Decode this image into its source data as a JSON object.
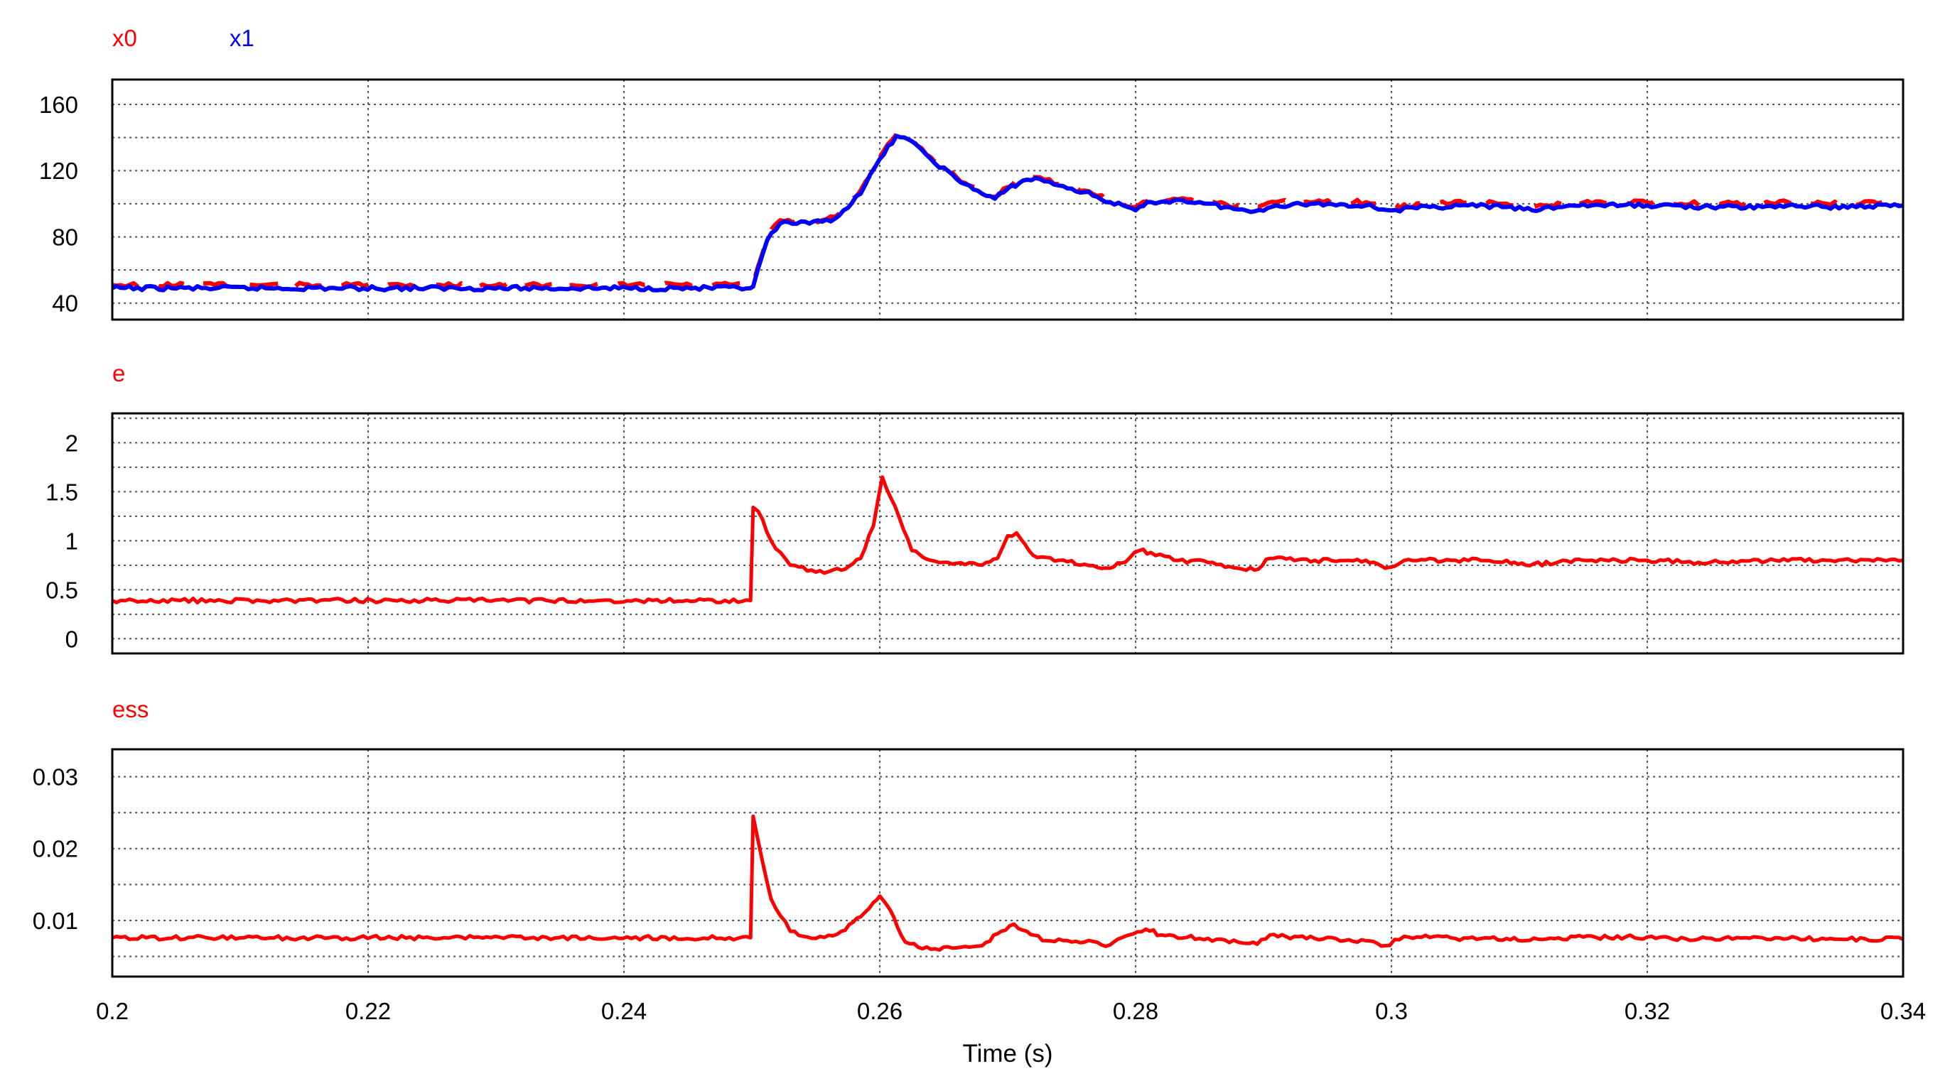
{
  "chart_data": [
    {
      "type": "line",
      "legend": [
        "x0",
        "x1"
      ],
      "ylim": [
        30,
        175
      ],
      "yticks": [
        40,
        80,
        120,
        160
      ],
      "xlim": [
        0.2,
        0.34
      ],
      "grid": true,
      "series": [
        {
          "name": "x0",
          "color": "#ff0000",
          "dash": true,
          "x": [
            0.2,
            0.2499,
            0.2501,
            0.2512,
            0.2522,
            0.2545,
            0.2565,
            0.2585,
            0.26,
            0.2613,
            0.2622,
            0.264,
            0.266,
            0.268,
            0.269,
            0.27,
            0.2712,
            0.2725,
            0.274,
            0.276,
            0.278,
            0.28,
            0.2812,
            0.283,
            0.285,
            0.287,
            0.289,
            0.291,
            0.294,
            0.298,
            0.3,
            0.303,
            0.306,
            0.309,
            0.311,
            0.314,
            0.318,
            0.321,
            0.325,
            0.329,
            0.331,
            0.334,
            0.34
          ],
          "y": [
            51,
            51,
            52,
            80,
            90,
            89,
            92,
            108,
            128,
            142,
            140,
            128,
            116,
            107,
            104,
            110,
            116,
            116,
            112,
            108,
            102,
            98,
            103,
            103,
            102,
            100,
            97,
            101,
            101,
            101,
            98,
            100,
            101,
            100,
            98,
            101,
            101,
            101,
            100,
            100,
            101,
            100,
            101
          ]
        },
        {
          "name": "x1",
          "color": "#0000ff",
          "dash": false,
          "x": [
            0.2,
            0.2499,
            0.2501,
            0.2512,
            0.2522,
            0.2545,
            0.2565,
            0.2585,
            0.26,
            0.2613,
            0.2622,
            0.264,
            0.266,
            0.268,
            0.269,
            0.27,
            0.2712,
            0.2725,
            0.274,
            0.276,
            0.278,
            0.28,
            0.2812,
            0.283,
            0.285,
            0.287,
            0.289,
            0.291,
            0.294,
            0.298,
            0.3,
            0.303,
            0.306,
            0.309,
            0.311,
            0.314,
            0.318,
            0.321,
            0.325,
            0.329,
            0.331,
            0.334,
            0.34
          ],
          "y": [
            49,
            49,
            50,
            78,
            88,
            88,
            91,
            106,
            127,
            141,
            139,
            127,
            115,
            106,
            103,
            109,
            114,
            115,
            111,
            107,
            101,
            96,
            101,
            102,
            101,
            98,
            95,
            99,
            100,
            99,
            96,
            98,
            99,
            98,
            96,
            99,
            99,
            99,
            98,
            98,
            99,
            98,
            99
          ]
        }
      ]
    },
    {
      "type": "line",
      "legend": [
        "e"
      ],
      "ylim": [
        -0.15,
        2.3
      ],
      "yticks": [
        "0",
        "0.5",
        "1",
        "1.5",
        "2"
      ],
      "xlim": [
        0.2,
        0.34
      ],
      "grid": true,
      "series": [
        {
          "name": "e",
          "color": "#ff0000",
          "x": [
            0.2,
            0.2499,
            0.2501,
            0.2505,
            0.2515,
            0.253,
            0.255,
            0.257,
            0.2585,
            0.2595,
            0.2602,
            0.2612,
            0.2625,
            0.264,
            0.266,
            0.268,
            0.2692,
            0.27,
            0.2707,
            0.272,
            0.274,
            0.276,
            0.278,
            0.2795,
            0.2803,
            0.2812,
            0.283,
            0.286,
            0.288,
            0.2893,
            0.2905,
            0.294,
            0.298,
            0.2995,
            0.301,
            0.305,
            0.309,
            0.3105,
            0.315,
            0.32,
            0.324,
            0.33,
            0.334,
            0.34
          ],
          "y": [
            0.39,
            0.39,
            1.34,
            1.3,
            1.0,
            0.75,
            0.68,
            0.7,
            0.82,
            1.15,
            1.65,
            1.35,
            0.9,
            0.8,
            0.77,
            0.75,
            0.82,
            1.05,
            1.08,
            0.85,
            0.8,
            0.76,
            0.72,
            0.82,
            0.9,
            0.88,
            0.8,
            0.78,
            0.72,
            0.7,
            0.82,
            0.8,
            0.8,
            0.72,
            0.8,
            0.8,
            0.8,
            0.75,
            0.8,
            0.8,
            0.78,
            0.8,
            0.8,
            0.8
          ]
        }
      ]
    },
    {
      "type": "line",
      "legend": [
        "ess"
      ],
      "ylim": [
        0.0022,
        0.0338
      ],
      "yticks": [
        "0.01",
        "0.02",
        "0.03"
      ],
      "xlim": [
        0.2,
        0.34
      ],
      "xticks": [
        "0.2",
        "0.22",
        "0.24",
        "0.26",
        "0.28",
        "0.3",
        "0.32",
        "0.34"
      ],
      "xlabel": "Time (s)",
      "grid": true,
      "series": [
        {
          "name": "ess",
          "color": "#ff0000",
          "x": [
            0.2,
            0.2499,
            0.2501,
            0.2505,
            0.2515,
            0.253,
            0.255,
            0.257,
            0.2585,
            0.2595,
            0.26,
            0.2608,
            0.262,
            0.264,
            0.266,
            0.268,
            0.2695,
            0.2705,
            0.2715,
            0.273,
            0.276,
            0.278,
            0.2795,
            0.2808,
            0.282,
            0.285,
            0.288,
            0.2895,
            0.2905,
            0.294,
            0.298,
            0.2995,
            0.301,
            0.305,
            0.309,
            0.3105,
            0.315,
            0.32,
            0.324,
            0.33,
            0.334,
            0.34
          ],
          "y": [
            0.0076,
            0.0076,
            0.0245,
            0.021,
            0.013,
            0.0085,
            0.0075,
            0.0085,
            0.0105,
            0.0125,
            0.0134,
            0.0115,
            0.007,
            0.006,
            0.0062,
            0.0065,
            0.0085,
            0.0095,
            0.0085,
            0.0072,
            0.007,
            0.0066,
            0.008,
            0.0088,
            0.008,
            0.0075,
            0.007,
            0.0067,
            0.008,
            0.0075,
            0.0072,
            0.0065,
            0.0078,
            0.0075,
            0.0075,
            0.0072,
            0.0077,
            0.0077,
            0.0074,
            0.0076,
            0.0074,
            0.0074
          ]
        }
      ]
    }
  ]
}
